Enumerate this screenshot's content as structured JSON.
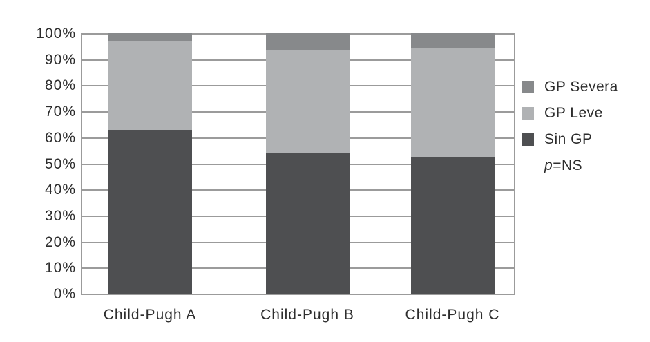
{
  "chart_data": {
    "type": "bar",
    "variant": "stacked-100-percent",
    "title": "",
    "xlabel": "",
    "ylabel": "",
    "categories": [
      "Child-Pugh A",
      "Child-Pugh B",
      "Child-Pugh C"
    ],
    "series": [
      {
        "name": "Sin GP",
        "color": "#4e4f51",
        "values": [
          63,
          54,
          52.5
        ]
      },
      {
        "name": "GP Leve",
        "color": "#b0b2b4",
        "values": [
          34,
          39.5,
          42
        ]
      },
      {
        "name": "GP Severa",
        "color": "#87898b",
        "values": [
          3,
          6.5,
          5.5
        ]
      }
    ],
    "y_ticks": [
      "0%",
      "10%",
      "20%",
      "30%",
      "40%",
      "50%",
      "60%",
      "70%",
      "80%",
      "90%",
      "100%"
    ],
    "ylim": [
      0,
      100
    ],
    "grid": "horizontal",
    "gridline_color": "#9b9b9b",
    "axis_text_color": "#2d2d2d",
    "legend_position": "right",
    "legend_order": [
      "GP Severa",
      "GP Leve",
      "Sin GP"
    ],
    "annotation": {
      "italic": "p",
      "text": "=NS"
    }
  }
}
